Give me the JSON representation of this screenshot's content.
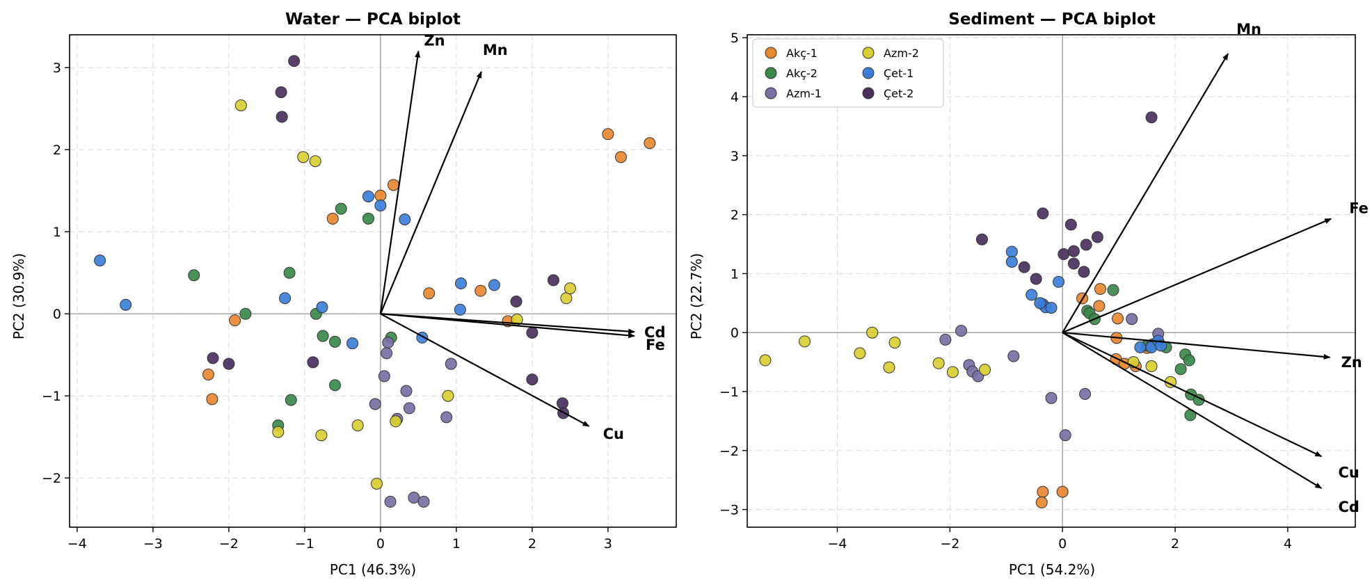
{
  "chart_data": [
    {
      "type": "scatter",
      "title": "Water — PCA biplot",
      "xlabel": "PC1 (46.3%)",
      "ylabel": "PC2 (30.9%)",
      "xlim": [
        -4.1,
        3.9
      ],
      "ylim": [
        -2.6,
        3.4
      ],
      "xticks": [
        -4,
        -3,
        -2,
        -1,
        0,
        1,
        2,
        3
      ],
      "yticks": [
        -2,
        -1,
        0,
        1,
        2,
        3
      ],
      "grid": true,
      "legend": null,
      "series": [
        {
          "name": "Akç-1",
          "color": "#E8872E",
          "points": [
            [
              0.0,
              1.44
            ],
            [
              0.17,
              1.57
            ],
            [
              -0.63,
              1.16
            ],
            [
              0.64,
              0.25
            ],
            [
              1.32,
              0.28
            ],
            [
              1.68,
              -0.09
            ],
            [
              3.0,
              2.19
            ],
            [
              3.17,
              1.91
            ],
            [
              3.55,
              2.08
            ],
            [
              -1.92,
              -0.08
            ],
            [
              -2.27,
              -0.74
            ],
            [
              -2.22,
              -1.04
            ]
          ]
        },
        {
          "name": "Akç-2",
          "color": "#3A8A4A",
          "points": [
            [
              -2.46,
              0.47
            ],
            [
              -1.78,
              0.0
            ],
            [
              -1.2,
              0.5
            ],
            [
              -0.85,
              0.0
            ],
            [
              -0.76,
              -0.27
            ],
            [
              -0.6,
              -0.34
            ],
            [
              -0.6,
              -0.87
            ],
            [
              -1.18,
              -1.05
            ],
            [
              -1.35,
              -1.36
            ],
            [
              -0.52,
              1.28
            ],
            [
              -0.16,
              1.16
            ],
            [
              0.14,
              -0.29
            ]
          ]
        },
        {
          "name": "Azm-1",
          "color": "#7B6FA6",
          "points": [
            [
              0.1,
              -0.35
            ],
            [
              0.08,
              -0.48
            ],
            [
              0.05,
              -0.76
            ],
            [
              -0.07,
              -1.1
            ],
            [
              0.34,
              -0.94
            ],
            [
              0.38,
              -1.15
            ],
            [
              0.22,
              -1.28
            ],
            [
              0.93,
              -0.61
            ],
            [
              0.87,
              -1.26
            ],
            [
              0.44,
              -2.24
            ],
            [
              0.57,
              -2.29
            ],
            [
              0.13,
              -2.29
            ]
          ]
        },
        {
          "name": "Azm-2",
          "color": "#D9CE32",
          "points": [
            [
              -1.84,
              2.54
            ],
            [
              -1.02,
              1.91
            ],
            [
              -0.86,
              1.86
            ],
            [
              1.8,
              -0.07
            ],
            [
              2.45,
              0.19
            ],
            [
              2.5,
              0.31
            ],
            [
              0.89,
              -1.0
            ],
            [
              -0.3,
              -1.36
            ],
            [
              -0.78,
              -1.48
            ],
            [
              -1.35,
              -1.44
            ],
            [
              0.2,
              -1.31
            ],
            [
              -0.05,
              -2.07
            ]
          ]
        },
        {
          "name": "Çet-1",
          "color": "#3C7FD9",
          "points": [
            [
              -0.16,
              1.43
            ],
            [
              0.0,
              1.32
            ],
            [
              0.32,
              1.15
            ],
            [
              -3.7,
              0.65
            ],
            [
              -3.36,
              0.11
            ],
            [
              -1.26,
              0.19
            ],
            [
              -0.77,
              0.08
            ],
            [
              -0.37,
              -0.36
            ],
            [
              1.06,
              0.37
            ],
            [
              1.5,
              0.35
            ],
            [
              1.05,
              0.05
            ],
            [
              0.55,
              -0.29
            ]
          ]
        },
        {
          "name": "Çet-2",
          "color": "#4B2F5F",
          "points": [
            [
              -1.14,
              3.08
            ],
            [
              -1.31,
              2.7
            ],
            [
              -1.3,
              2.4
            ],
            [
              -2.21,
              -0.54
            ],
            [
              -2.0,
              -0.61
            ],
            [
              -0.89,
              -0.59
            ],
            [
              1.79,
              0.15
            ],
            [
              2.28,
              0.41
            ],
            [
              2.0,
              -0.23
            ],
            [
              2.0,
              -0.8
            ],
            [
              2.4,
              -1.09
            ],
            [
              2.41,
              -1.21
            ]
          ]
        }
      ],
      "vectors": [
        {
          "label": "Zn",
          "end": [
            0.5,
            3.2
          ]
        },
        {
          "label": "Mn",
          "end": [
            1.33,
            2.95
          ]
        },
        {
          "label": "Fe",
          "end": [
            3.35,
            -0.27
          ]
        },
        {
          "label": "Cd",
          "end": [
            3.35,
            -0.22
          ]
        },
        {
          "label": "Cu",
          "end": [
            2.75,
            -1.37
          ]
        }
      ]
    },
    {
      "type": "scatter",
      "title": "Sediment — PCA biplot",
      "xlabel": "PC1 (54.2%)",
      "ylabel": "PC2 (22.7%)",
      "xlim": [
        -5.6,
        5.2
      ],
      "ylim": [
        -3.3,
        5.05
      ],
      "xticks": [
        -4,
        -2,
        0,
        2,
        4
      ],
      "yticks": [
        -3,
        -2,
        -1,
        0,
        1,
        2,
        3,
        4,
        5
      ],
      "grid": true,
      "legend": "top-left",
      "series": [
        {
          "name": "Akç-1",
          "color": "#E8872E",
          "points": [
            [
              0.35,
              0.58
            ],
            [
              0.65,
              0.45
            ],
            [
              0.67,
              0.74
            ],
            [
              0.96,
              -0.09
            ],
            [
              0.98,
              0.24
            ],
            [
              0.95,
              -0.45
            ],
            [
              1.1,
              -0.53
            ],
            [
              1.3,
              -0.57
            ],
            [
              1.5,
              -0.26
            ],
            [
              -0.35,
              -2.7
            ],
            [
              -0.37,
              -2.88
            ],
            [
              0.0,
              -2.7
            ]
          ]
        },
        {
          "name": "Akç-2",
          "color": "#3A8A4A",
          "points": [
            [
              0.44,
              0.37
            ],
            [
              0.48,
              0.33
            ],
            [
              0.9,
              0.72
            ],
            [
              0.57,
              0.23
            ],
            [
              1.84,
              -0.25
            ],
            [
              2.18,
              -0.37
            ],
            [
              2.25,
              -0.47
            ],
            [
              2.1,
              -0.62
            ],
            [
              2.28,
              -1.05
            ],
            [
              2.42,
              -1.14
            ],
            [
              2.27,
              -1.4
            ],
            [
              1.5,
              -0.22
            ]
          ]
        },
        {
          "name": "Azm-1",
          "color": "#7B6FA6",
          "points": [
            [
              -1.8,
              0.03
            ],
            [
              -2.08,
              -0.12
            ],
            [
              -0.87,
              -0.4
            ],
            [
              -1.66,
              -0.55
            ],
            [
              -1.6,
              -0.66
            ],
            [
              -1.5,
              -0.74
            ],
            [
              1.23,
              0.23
            ],
            [
              1.7,
              -0.02
            ],
            [
              -0.2,
              -1.11
            ],
            [
              0.4,
              -1.04
            ],
            [
              0.05,
              -1.74
            ],
            [
              1.6,
              -0.2
            ]
          ]
        },
        {
          "name": "Azm-2",
          "color": "#D9CE32",
          "points": [
            [
              -3.38,
              0.0
            ],
            [
              -4.58,
              -0.15
            ],
            [
              -5.28,
              -0.47
            ],
            [
              -3.6,
              -0.35
            ],
            [
              -2.98,
              -0.17
            ],
            [
              -3.08,
              -0.59
            ],
            [
              -2.2,
              -0.52
            ],
            [
              -1.95,
              -0.67
            ],
            [
              -1.38,
              -0.63
            ],
            [
              1.26,
              -0.5
            ],
            [
              1.58,
              -0.57
            ],
            [
              1.92,
              -0.84
            ]
          ]
        },
        {
          "name": "Çet-1",
          "color": "#3C7FD9",
          "points": [
            [
              -0.9,
              1.37
            ],
            [
              -0.9,
              1.2
            ],
            [
              -0.55,
              0.64
            ],
            [
              -0.35,
              0.48
            ],
            [
              -0.3,
              0.43
            ],
            [
              -0.4,
              0.5
            ],
            [
              -0.2,
              0.42
            ],
            [
              -0.07,
              0.86
            ],
            [
              1.38,
              -0.25
            ],
            [
              1.58,
              -0.25
            ],
            [
              1.7,
              -0.14
            ],
            [
              1.75,
              -0.22
            ]
          ]
        },
        {
          "name": "Çet-2",
          "color": "#4B2F5F",
          "points": [
            [
              1.58,
              3.65
            ],
            [
              -0.35,
              2.02
            ],
            [
              0.02,
              1.33
            ],
            [
              0.2,
              1.38
            ],
            [
              0.42,
              1.49
            ],
            [
              0.62,
              1.62
            ],
            [
              0.15,
              1.83
            ],
            [
              0.2,
              1.17
            ],
            [
              -1.43,
              1.58
            ],
            [
              -0.68,
              1.11
            ],
            [
              -0.47,
              0.91
            ],
            [
              0.38,
              1.03
            ]
          ]
        }
      ],
      "vectors": [
        {
          "label": "Mn",
          "end": [
            2.94,
            4.73
          ]
        },
        {
          "label": "Fe",
          "end": [
            4.77,
            1.93
          ]
        },
        {
          "label": "Zn",
          "end": [
            4.75,
            -0.42
          ]
        },
        {
          "label": "Cu",
          "end": [
            4.6,
            -2.1
          ]
        },
        {
          "label": "Cd",
          "end": [
            4.6,
            -2.64
          ]
        }
      ]
    }
  ]
}
